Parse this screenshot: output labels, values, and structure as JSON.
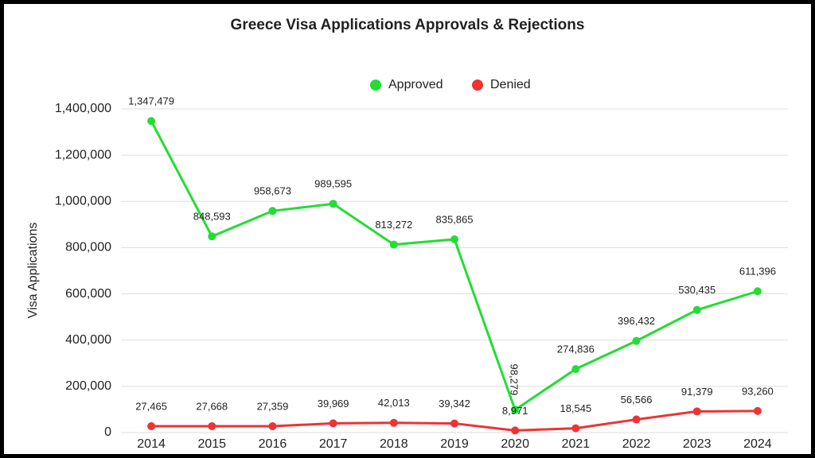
{
  "chart_data": {
    "type": "line",
    "title": "Greece Visa Applications Approvals & Rejections",
    "y_label": "Visa Applications",
    "categories": [
      "2014",
      "2015",
      "2016",
      "2017",
      "2018",
      "2019",
      "2020",
      "2021",
      "2022",
      "2023",
      "2024"
    ],
    "series": [
      {
        "name": "Approved",
        "color": "#22dd33",
        "values": [
          1347479,
          848593,
          958673,
          989595,
          813272,
          835865,
          98279,
          274836,
          396432,
          530435,
          611396
        ],
        "value_labels": [
          "1,347,479",
          "848,593",
          "958,673",
          "989,595",
          "813,272",
          "835,865",
          "98,279",
          "274,836",
          "396,432",
          "530,435",
          "611,396"
        ]
      },
      {
        "name": "Denied",
        "color": "#ee3333",
        "values": [
          27465,
          27668,
          27359,
          39969,
          42013,
          39342,
          8971,
          18545,
          56566,
          91379,
          93260
        ],
        "value_labels": [
          "27,465",
          "27,668",
          "27,359",
          "39,969",
          "42,013",
          "39,342",
          "8,971",
          "18,545",
          "56,566",
          "91,379",
          "93,260"
        ]
      }
    ],
    "ylim": [
      0,
      1400000
    ],
    "yticks": [
      0,
      {
        "value": 200000,
        "label": "200,000"
      },
      {
        "value": 400000,
        "label": "400,000"
      },
      {
        "value": 600000,
        "label": "600,000"
      },
      {
        "value": 800000,
        "label": "800,000"
      },
      {
        "value": 1000000,
        "label": "1,000,000"
      },
      {
        "value": 1200000,
        "label": "1,200,000"
      },
      {
        "value": 1400000,
        "label": "1,400,000"
      }
    ],
    "grid": true,
    "legend": "top"
  }
}
